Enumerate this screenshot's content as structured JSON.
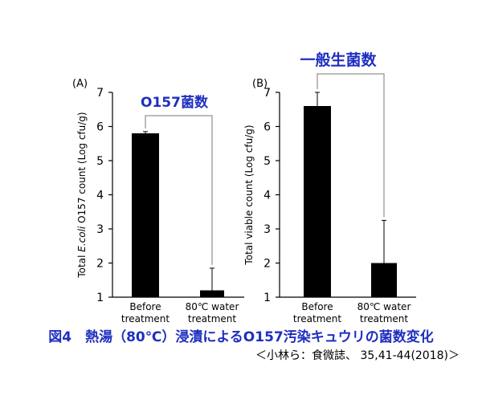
{
  "chart_data": [
    {
      "type": "bar",
      "panel_label": "(A)",
      "categories": [
        "Before treatment",
        "80℃ water treatment"
      ],
      "category_lines": [
        [
          "Before",
          "treatment"
        ],
        [
          "80℃ water",
          "treatment"
        ]
      ],
      "values": [
        5.8,
        1.2
      ],
      "errors_upper": [
        0.05,
        0.65
      ],
      "ylabel_prefix": "Total ",
      "ylabel_italic": "E.coli",
      "ylabel_suffix": " O157 count (Log cfu/g)",
      "ylim": [
        1,
        7
      ],
      "yticks": [
        1,
        2,
        3,
        4,
        5,
        6,
        7
      ],
      "annotation": "O157菌数",
      "bar_color": "#000000"
    },
    {
      "type": "bar",
      "panel_label": "(B)",
      "categories": [
        "Before treatment",
        "80℃ water treatment"
      ],
      "category_lines": [
        [
          "Before",
          "treatment"
        ],
        [
          "80℃ water",
          "treatment"
        ]
      ],
      "values": [
        6.6,
        2.0
      ],
      "errors_upper": [
        0.4,
        1.25
      ],
      "ylabel_prefix": "Total viable count (Log cfu/g)",
      "ylabel_italic": "",
      "ylabel_suffix": "",
      "ylim": [
        1,
        7
      ],
      "yticks": [
        1,
        2,
        3,
        4,
        5,
        6,
        7
      ],
      "annotation": "一般生菌数",
      "bar_color": "#000000"
    }
  ],
  "caption": "図4　熱湯（80℃）浸漬によるO157汚染キュウリの菌数変化",
  "source": "＜小林ら：食微誌、 35,41-44(2018)＞",
  "colors": {
    "accent": "#1f2fbf",
    "axis": "#000000"
  }
}
